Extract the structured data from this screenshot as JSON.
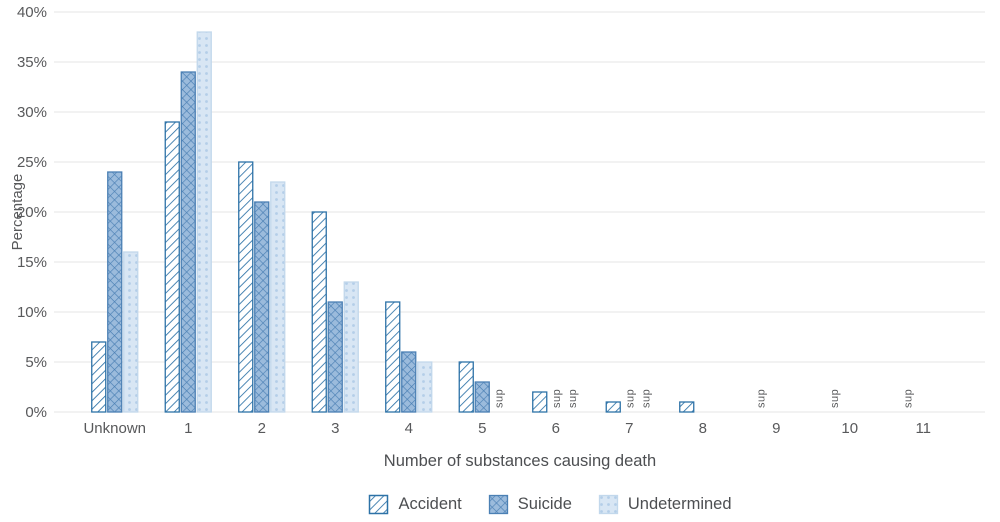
{
  "chart_data": {
    "type": "bar",
    "title": "",
    "xlabel": "Number of substances causing death",
    "ylabel": "Percentage",
    "ylim": [
      0,
      40
    ],
    "ytick_step": 5,
    "ytick_labels": [
      "0%",
      "5%",
      "10%",
      "15%",
      "20%",
      "25%",
      "30%",
      "35%",
      "40%"
    ],
    "categories": [
      "Unknown",
      "1",
      "2",
      "3",
      "4",
      "5",
      "6",
      "7",
      "8",
      "9",
      "10",
      "11"
    ],
    "suppressed_label": "sup",
    "legend_position": "bottom",
    "grid": true,
    "series": [
      {
        "name": "Accident",
        "pattern": "diagonal-hatch",
        "values": [
          7,
          29,
          25,
          20,
          11,
          5,
          2,
          1,
          1,
          "sup",
          "sup",
          "sup"
        ]
      },
      {
        "name": "Suicide",
        "pattern": "crosshatch",
        "values": [
          24,
          34,
          21,
          11,
          6,
          3,
          "sup",
          "sup",
          null,
          null,
          null,
          null
        ]
      },
      {
        "name": "Undetermined",
        "pattern": "dots",
        "values": [
          16,
          38,
          23,
          13,
          5,
          "sup",
          "sup",
          "sup",
          null,
          null,
          null,
          null
        ]
      }
    ],
    "colors": {
      "accident_stroke": "#2d72a7",
      "accident_bg": "#ffffff",
      "suicide_fill": "#9bbbdc",
      "suicide_stroke": "#4b80b4",
      "undetermined_fill": "#d8e6f4",
      "undetermined_dot": "#b4cee8",
      "undetermined_stroke": "#c2d8ec",
      "grid": "#e5e5e5",
      "text": "#58595b"
    }
  }
}
